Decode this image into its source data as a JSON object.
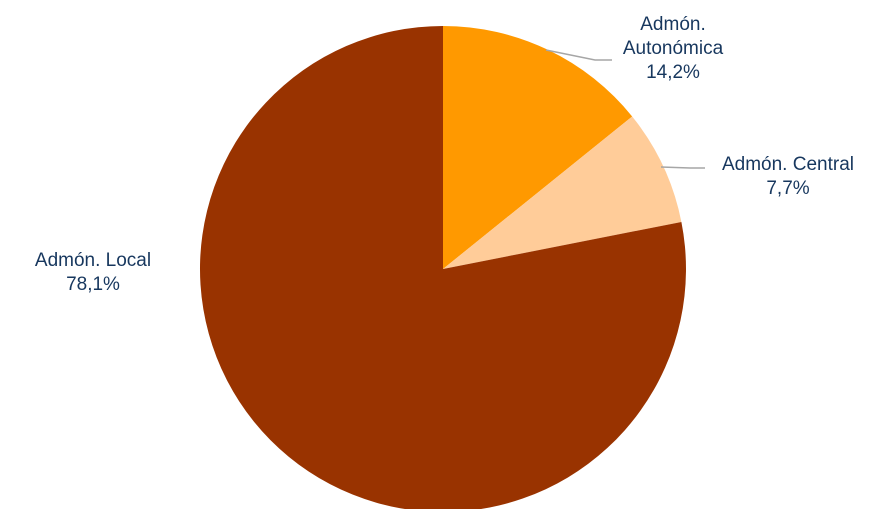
{
  "chart_data": {
    "type": "pie",
    "title": "",
    "slices": [
      {
        "label": "Admón. Autonómica",
        "value": 14.2,
        "value_label": "14,2%",
        "color": "#ff9900"
      },
      {
        "label": "Admón. Central",
        "value": 7.7,
        "value_label": "7,7%",
        "color": "#ffcc99"
      },
      {
        "label": "Admón. Local",
        "value": 78.1,
        "value_label": "78,1%",
        "color": "#993300"
      }
    ],
    "label_color": "#17375e",
    "leader_line_color": "#a6a6a6",
    "start_angle": "12 o'clock",
    "direction": "clockwise"
  }
}
